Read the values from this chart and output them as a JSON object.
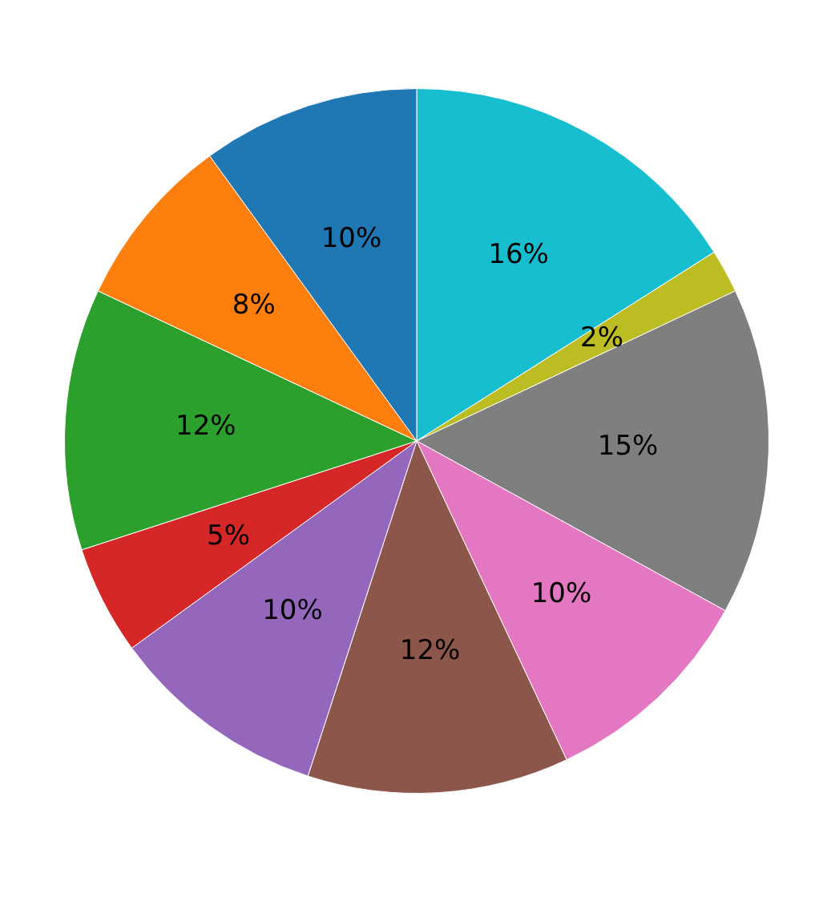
{
  "chart_data": {
    "type": "pie",
    "categories": [
      null,
      null,
      null,
      null,
      null,
      null,
      null,
      null,
      null,
      null
    ],
    "values": [
      16,
      2,
      15,
      10,
      12,
      10,
      5,
      12,
      8,
      10
    ],
    "colors": [
      "#17becf",
      "#bcbd22",
      "#7f7f7f",
      "#e377c2",
      "#8c564b",
      "#9467bd",
      "#d62728",
      "#2ca02c",
      "#ff7f0e",
      "#1f77b4"
    ],
    "value_labels": [
      "16%",
      "2%",
      "15%",
      "10%",
      "12%",
      "10%",
      "5%",
      "12%",
      "8%",
      "10%"
    ],
    "legend": false
  }
}
